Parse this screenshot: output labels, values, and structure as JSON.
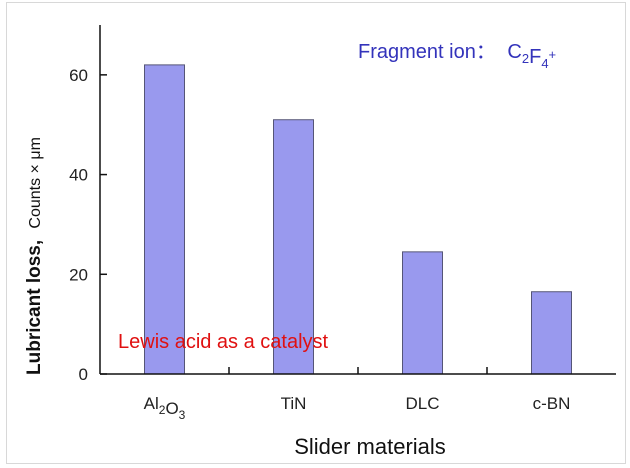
{
  "chart_data": {
    "type": "bar",
    "categories": [
      "Al2O3",
      "TiN",
      "DLC",
      "c-BN"
    ],
    "category_labels": [
      {
        "parts": [
          {
            "t": "Al"
          },
          {
            "t": "2",
            "sub": true
          },
          {
            "t": "O"
          },
          {
            "t": "3",
            "sub": true
          }
        ]
      },
      {
        "parts": [
          {
            "t": "TiN"
          }
        ]
      },
      {
        "parts": [
          {
            "t": "DLC"
          }
        ]
      },
      {
        "parts": [
          {
            "t": "c-BN"
          }
        ]
      }
    ],
    "values": [
      62,
      51,
      24.5,
      16.5
    ],
    "ylim": [
      0,
      70
    ],
    "yticks": [
      0,
      20,
      40,
      60
    ],
    "xlabel": "Slider materials",
    "ylabel": "Lubricant loss,",
    "ylabel_unit": "Counts × μm",
    "annotations": {
      "fragment_prefix": "Fragment ion：",
      "fragment_formula": [
        {
          "t": "C"
        },
        {
          "t": "2",
          "sub": true
        },
        {
          "t": "F"
        },
        {
          "t": "4",
          "sub": true
        },
        {
          "t": "+",
          "sup": true
        }
      ],
      "catalyst_note": "Lewis acid as a catalyst"
    },
    "grid": false,
    "legend": "none"
  },
  "colors": {
    "bar_fill": "#9999ee",
    "bar_stroke": "#555577",
    "fragment_text": "#3333bb",
    "catalyst_text": "#e01010",
    "axis": "#111111"
  }
}
